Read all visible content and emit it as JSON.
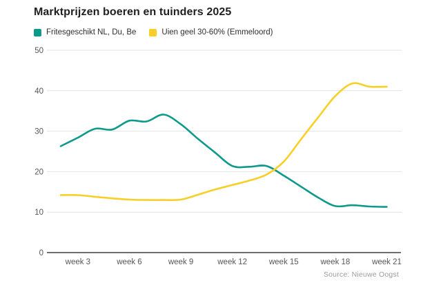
{
  "title": "Marktprijzen boeren en tuinders 2025",
  "source": "Source: Nieuwe Oogst",
  "colors": {
    "grid": "#e3e3e3",
    "axis": "#3d3d3d",
    "tick_text": "#565656",
    "title_text": "#1f1f1f",
    "source_text": "#9a9a9a"
  },
  "chart_data": {
    "type": "line",
    "title": "Marktprijzen boeren en tuinders 2025",
    "x": [
      2,
      3,
      4,
      5,
      6,
      7,
      8,
      9,
      10,
      11,
      12,
      13,
      14,
      15,
      16,
      17,
      18,
      19,
      20,
      21
    ],
    "x_unit": "week",
    "series": [
      {
        "name": "Fritesgeschikt NL, Du, Be",
        "color": "#0e9a8b",
        "values": [
          26.3,
          28.4,
          30.6,
          30.4,
          32.6,
          32.4,
          34.1,
          31.7,
          28.1,
          24.7,
          21.4,
          21.2,
          21.4,
          19.0,
          16.3,
          13.6,
          11.5,
          11.7,
          11.4,
          11.3
        ]
      },
      {
        "name": "Uien geel 30-60% (Emmeloord)",
        "color": "#f7cf26",
        "values": [
          14.2,
          14.2,
          13.8,
          13.4,
          13.1,
          13.0,
          13.0,
          13.1,
          14.3,
          15.6,
          16.7,
          17.8,
          19.3,
          22.5,
          28.0,
          33.4,
          38.7,
          41.8,
          41.0,
          41.0
        ]
      }
    ],
    "ylim": [
      0,
      50
    ],
    "yticks": [
      0,
      10,
      20,
      30,
      40,
      50
    ],
    "xticks": [
      3,
      6,
      9,
      12,
      15,
      18,
      21
    ],
    "xtick_labels": [
      "week 3",
      "week 6",
      "week 9",
      "week 12",
      "week 15",
      "week 18",
      "week 21"
    ],
    "grid": "horizontal",
    "legend_position": "top-left",
    "source": "Source: Nieuwe Oogst"
  }
}
